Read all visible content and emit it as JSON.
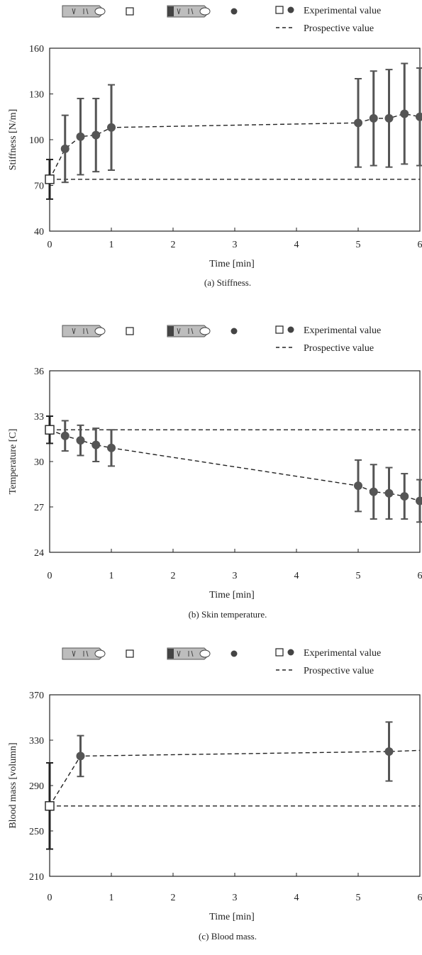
{
  "legend": {
    "experimental": "Experimental value",
    "prospective": "Prospective value"
  },
  "chart_data": [
    {
      "type": "scatter",
      "caption": "(a) Stiffness.",
      "xlabel": "Time [min]",
      "ylabel": "Stiffness [N/m]",
      "xlim": [
        0,
        6
      ],
      "ylim": [
        40,
        160
      ],
      "xticks": [
        0,
        1,
        2,
        3,
        4,
        5,
        6
      ],
      "yticks": [
        40,
        70,
        100,
        130,
        160
      ],
      "prospective_value": 74,
      "experimental_initial": {
        "x": 0,
        "y": 74,
        "err": 13
      },
      "series": [
        {
          "x": 0.25,
          "y": 94,
          "err": 22
        },
        {
          "x": 0.5,
          "y": 102,
          "err": 25
        },
        {
          "x": 0.75,
          "y": 103,
          "err": 24
        },
        {
          "x": 1.0,
          "y": 108,
          "err": 28
        },
        {
          "x": 5.0,
          "y": 111,
          "err": 29
        },
        {
          "x": 5.25,
          "y": 114,
          "err": 31
        },
        {
          "x": 5.5,
          "y": 114,
          "err": 32
        },
        {
          "x": 5.75,
          "y": 117,
          "err": 33
        },
        {
          "x": 6.0,
          "y": 115,
          "err": 32
        }
      ]
    },
    {
      "type": "scatter",
      "caption": "(b) Skin temperature.",
      "xlabel": "Time [min]",
      "ylabel": "Temperature [C]",
      "xlim": [
        0,
        6
      ],
      "ylim": [
        24,
        36
      ],
      "xticks": [
        0,
        1,
        2,
        3,
        4,
        5,
        6
      ],
      "yticks": [
        24,
        27,
        30,
        33,
        36
      ],
      "prospective_value": 32.1,
      "experimental_initial": {
        "x": 0,
        "y": 32.1,
        "err": 0.9
      },
      "series": [
        {
          "x": 0.25,
          "y": 31.7,
          "err": 1.0
        },
        {
          "x": 0.5,
          "y": 31.4,
          "err": 1.0
        },
        {
          "x": 0.75,
          "y": 31.1,
          "err": 1.1
        },
        {
          "x": 1.0,
          "y": 30.9,
          "err": 1.2
        },
        {
          "x": 5.0,
          "y": 28.4,
          "err": 1.7
        },
        {
          "x": 5.25,
          "y": 28.0,
          "err": 1.8
        },
        {
          "x": 5.5,
          "y": 27.9,
          "err": 1.7
        },
        {
          "x": 5.75,
          "y": 27.7,
          "err": 1.5
        },
        {
          "x": 6.0,
          "y": 27.4,
          "err": 1.4
        }
      ]
    },
    {
      "type": "scatter",
      "caption": "(c) Blood mass.",
      "xlabel": "Time [min]",
      "ylabel": "Blood mass [volumn]",
      "xlim": [
        0,
        6
      ],
      "ylim": [
        210,
        370
      ],
      "xticks": [
        0,
        1,
        2,
        3,
        4,
        5,
        6
      ],
      "yticks": [
        210,
        250,
        290,
        330,
        370
      ],
      "prospective_value": 272,
      "experimental_initial": {
        "x": 0,
        "y": 272,
        "err": 38
      },
      "series": [
        {
          "x": 0.5,
          "y": 316,
          "err": 18
        },
        {
          "x": 5.5,
          "y": 320,
          "err": 26
        }
      ],
      "trend_end": {
        "x": 6.0,
        "y": 321
      }
    }
  ]
}
